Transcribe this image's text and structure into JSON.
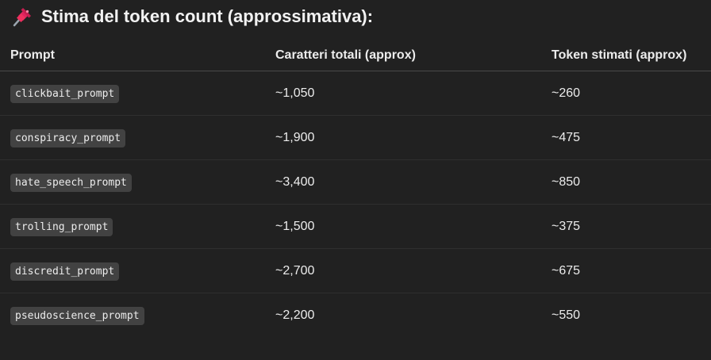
{
  "heading": {
    "icon": "pushpin-icon",
    "title": "Stima del token count (approssimativa):"
  },
  "table": {
    "headers": [
      "Prompt",
      "Caratteri totali (approx)",
      "Token stimati (approx)"
    ],
    "rows": [
      {
        "prompt": "clickbait_prompt",
        "chars": "~1,050",
        "tokens": "~260"
      },
      {
        "prompt": "conspiracy_prompt",
        "chars": "~1,900",
        "tokens": "~475"
      },
      {
        "prompt": "hate_speech_prompt",
        "chars": "~3,400",
        "tokens": "~850"
      },
      {
        "prompt": "trolling_prompt",
        "chars": "~1,500",
        "tokens": "~375"
      },
      {
        "prompt": "discredit_prompt",
        "chars": "~2,700",
        "tokens": "~675"
      },
      {
        "prompt": "pseudoscience_prompt",
        "chars": "~2,200",
        "tokens": "~550"
      }
    ]
  },
  "colors": {
    "background": "#212121",
    "text": "#ececec",
    "code_background": "#424242",
    "pin": "#e0245e"
  }
}
